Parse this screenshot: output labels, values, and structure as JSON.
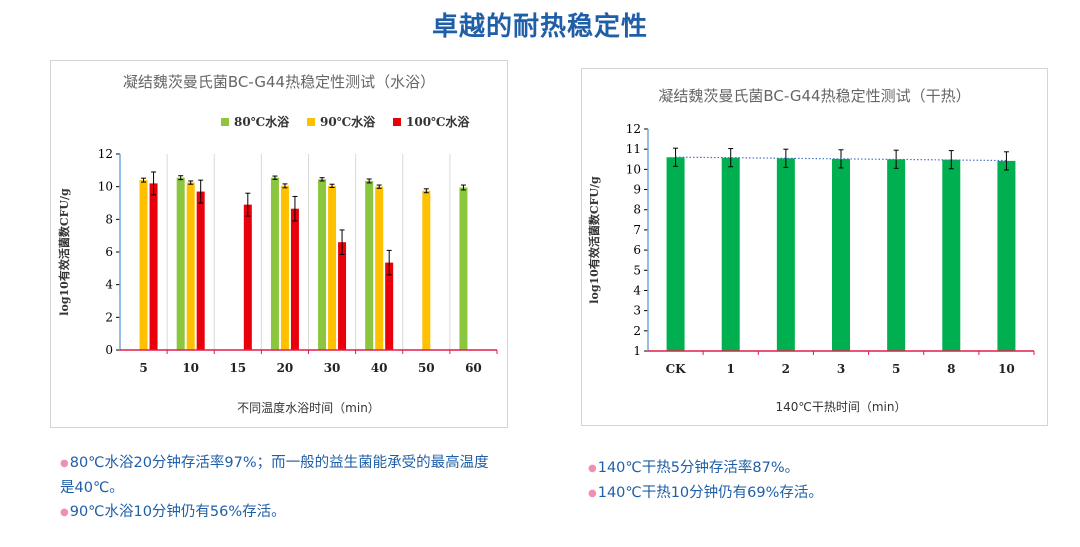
{
  "page": {
    "title": "卓越的耐热稳定性",
    "colors": {
      "title": "#1f5fa8",
      "note_text": "#1f5fa8",
      "bullet": "#f08fb5"
    }
  },
  "notes_left": [
    {
      "bullet": "●",
      "text": "80℃水浴20分钟存活率97%；而一般的益生菌能承受的最高温度是40℃。"
    },
    {
      "bullet": "●",
      "text": "90℃水浴10分钟仍有56%存活。"
    }
  ],
  "notes_right": [
    {
      "bullet": "●",
      "text": "140℃干热5分钟存活率87%。"
    },
    {
      "bullet": "●",
      "text": "140℃干热10分钟仍有69%存活。"
    }
  ],
  "chart_data": [
    {
      "type": "bar",
      "title": "凝结魏茨曼氏菌BC-G44热稳定性测试（水浴）",
      "xlabel": "不同温度水浴时间（min）",
      "ylabel": "log10有效活菌数CFU/g",
      "categories": [
        "5",
        "10",
        "15",
        "20",
        "30",
        "40",
        "50",
        "60"
      ],
      "ylim": [
        0,
        12
      ],
      "yticks": [
        "0",
        "2",
        "4",
        "6",
        "8",
        "10",
        "12"
      ],
      "grid": "vertical-category-separators",
      "legend_position": "top-right",
      "error_bars": true,
      "series": [
        {
          "name": "80℃水浴",
          "color": "#8cc63f",
          "values": [
            null,
            10.55,
            null,
            10.55,
            10.45,
            10.35,
            null,
            9.95
          ],
          "errors": [
            null,
            0.12,
            null,
            0.1,
            0.1,
            0.12,
            null,
            0.15
          ]
        },
        {
          "name": "90℃水浴",
          "color": "#ffc000",
          "values": [
            10.4,
            10.25,
            null,
            10.05,
            10.05,
            10.0,
            9.75,
            null
          ],
          "errors": [
            0.12,
            0.1,
            null,
            0.12,
            0.1,
            0.1,
            0.12,
            null
          ]
        },
        {
          "name": "100℃水浴",
          "color": "#e8000b",
          "values": [
            10.2,
            9.7,
            8.9,
            8.65,
            6.6,
            5.35,
            null,
            null
          ],
          "errors": [
            0.7,
            0.7,
            0.7,
            0.75,
            0.75,
            0.75,
            null,
            null
          ]
        }
      ]
    },
    {
      "type": "bar",
      "title": "凝结魏茨曼氏菌BC-G44热稳定性测试（干热）",
      "xlabel": "140℃干热时间（min）",
      "ylabel": "log10有效活菌数CFU/g",
      "categories": [
        "CK",
        "1",
        "2",
        "3",
        "5",
        "8",
        "10"
      ],
      "ylim": [
        1,
        12
      ],
      "yticks": [
        "1",
        "2",
        "3",
        "4",
        "5",
        "6",
        "7",
        "8",
        "9",
        "10",
        "11",
        "12"
      ],
      "error_bars": true,
      "trendline": "linear dotted",
      "series": [
        {
          "color": "#00b050",
          "trendline_color": "#4472c4",
          "values": [
            10.6,
            10.58,
            10.55,
            10.52,
            10.5,
            10.48,
            10.42
          ],
          "errors": [
            0.45,
            0.45,
            0.45,
            0.45,
            0.45,
            0.45,
            0.45
          ]
        }
      ]
    }
  ]
}
